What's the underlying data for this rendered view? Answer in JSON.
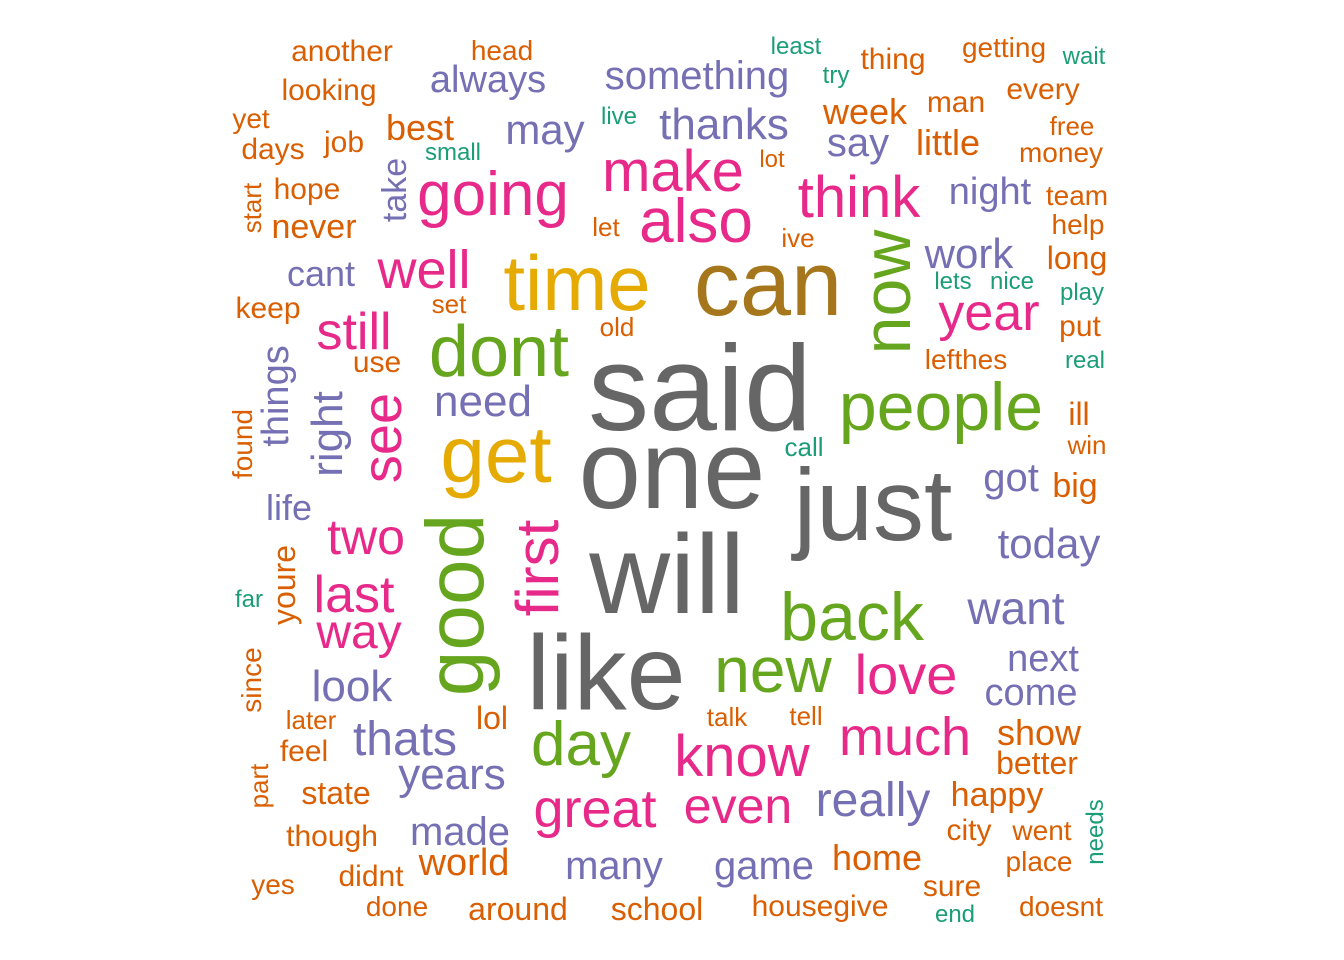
{
  "palette": {
    "grey": "#666666",
    "olive": "#a6761d",
    "gold": "#e6ab02",
    "green": "#66a61e",
    "pink": "#e7298a",
    "purple": "#7570b3",
    "orange": "#d95f02",
    "teal": "#1b9e77"
  },
  "words": [
    "said",
    "one",
    "will",
    "like",
    "just",
    "can",
    "time",
    "dont",
    "get",
    "good",
    "people",
    "now",
    "also",
    "make",
    "going",
    "think",
    "back",
    "new",
    "love",
    "first",
    "see",
    "day",
    "know",
    "much",
    "even",
    "great",
    "still",
    "well",
    "year",
    "two",
    "last",
    "way",
    "something",
    "thanks",
    "always",
    "may",
    "need",
    "right",
    "things",
    "work",
    "night",
    "today",
    "want",
    "next",
    "come",
    "look",
    "thats",
    "years",
    "really",
    "made",
    "many",
    "game",
    "world",
    "say",
    "week",
    "little",
    "lol",
    "show",
    "better",
    "happy",
    "home",
    "best",
    "take",
    "cant",
    "life",
    "got",
    "youre",
    "another",
    "head",
    "looking",
    "least",
    "try",
    "thing",
    "getting",
    "wait",
    "yet",
    "days",
    "job",
    "live",
    "small",
    "man",
    "every",
    "free",
    "money",
    "hope",
    "never",
    "start",
    "lot",
    "team",
    "help",
    "let",
    "ive",
    "long",
    "keep",
    "set",
    "lets",
    "nice",
    "play",
    "old",
    "put",
    "use",
    "lefthes",
    "real",
    "found",
    "ill",
    "call",
    "win",
    "big",
    "far",
    "since",
    "later",
    "talk",
    "tell",
    "feel",
    "part",
    "state",
    "though",
    "city",
    "went",
    "needs",
    "place",
    "yes",
    "didnt",
    "done",
    "around",
    "school",
    "housegive",
    "sure",
    "end",
    "doesnt"
  ]
}
